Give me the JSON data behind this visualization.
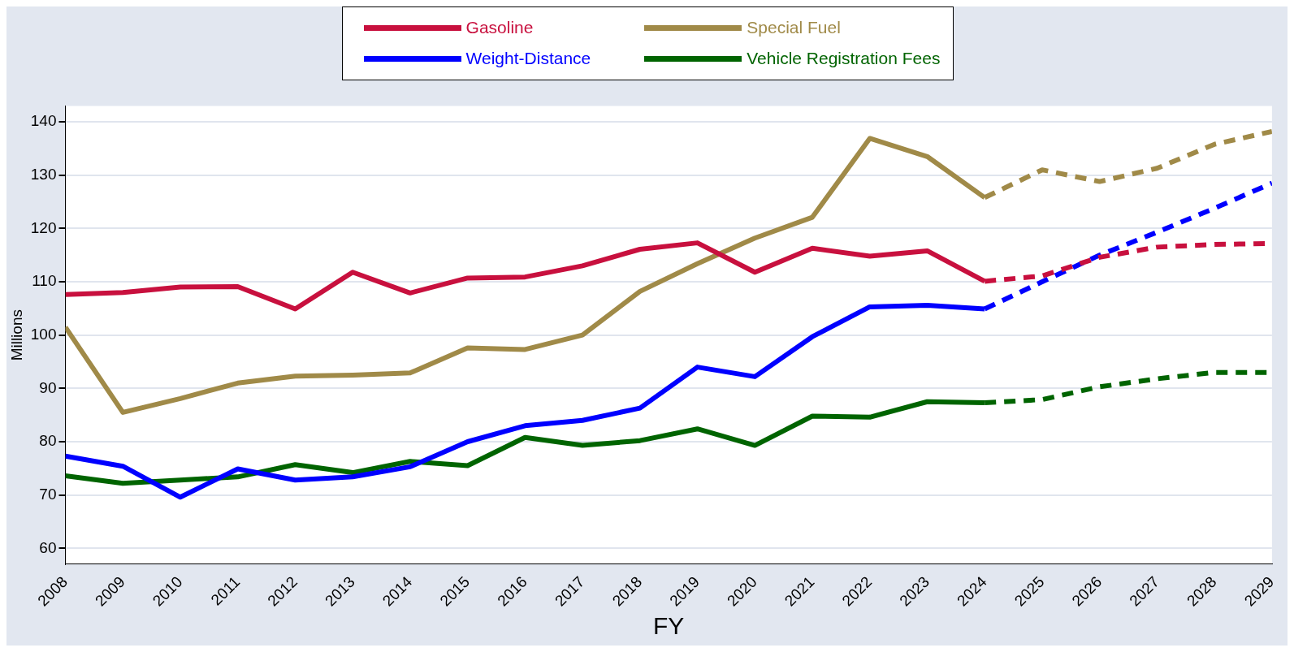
{
  "chart_data": {
    "type": "line",
    "xlabel": "FY",
    "ylabel": "Millions",
    "xlim": [
      2008,
      2029
    ],
    "xticks": [
      2008,
      2009,
      2010,
      2011,
      2012,
      2013,
      2014,
      2015,
      2016,
      2017,
      2018,
      2019,
      2020,
      2021,
      2022,
      2023,
      2024,
      2025,
      2026,
      2027,
      2028,
      2029
    ],
    "ylim": [
      57,
      143
    ],
    "yticks": [
      60,
      70,
      80,
      90,
      100,
      110,
      120,
      130,
      140
    ],
    "grid": "y",
    "legend": "top",
    "marker": "none",
    "series": [
      {
        "name": "Gasoline",
        "color": "#c8103e",
        "line_style": "solid",
        "x": [
          2008,
          2009,
          2010,
          2011,
          2012,
          2013,
          2014,
          2015,
          2016,
          2017,
          2018,
          2019,
          2020,
          2021,
          2022,
          2023,
          2024
        ],
        "values": [
          107.6,
          108.0,
          109.0,
          109.1,
          104.9,
          111.8,
          107.9,
          110.7,
          110.9,
          113.0,
          116.1,
          117.3,
          111.8,
          116.3,
          114.8,
          115.8,
          110.1
        ]
      },
      {
        "name": "Special Fuel",
        "color": "#a08a48",
        "line_style": "solid",
        "x": [
          2008,
          2009,
          2010,
          2011,
          2012,
          2013,
          2014,
          2015,
          2016,
          2017,
          2018,
          2019,
          2020,
          2021,
          2022,
          2023,
          2024
        ],
        "values": [
          101.5,
          85.5,
          88.1,
          91.0,
          92.3,
          92.5,
          92.9,
          97.6,
          97.3,
          100.0,
          108.2,
          113.4,
          118.2,
          122.1,
          136.9,
          133.5,
          125.8
        ]
      },
      {
        "name": "Weight-Distance",
        "color": "#0000ff",
        "line_style": "solid",
        "x": [
          2008,
          2009,
          2010,
          2011,
          2012,
          2013,
          2014,
          2015,
          2016,
          2017,
          2018,
          2019,
          2020,
          2021,
          2022,
          2023,
          2024
        ],
        "values": [
          77.3,
          75.4,
          69.6,
          74.9,
          72.8,
          73.4,
          75.3,
          80.0,
          83.0,
          84.0,
          86.3,
          94.0,
          92.2,
          99.7,
          105.3,
          105.6,
          104.9
        ]
      },
      {
        "name": "Vehicle Registration Fees",
        "color": "#006400",
        "line_style": "solid",
        "x": [
          2008,
          2009,
          2010,
          2011,
          2012,
          2013,
          2014,
          2015,
          2016,
          2017,
          2018,
          2019,
          2020,
          2021,
          2022,
          2023,
          2024
        ],
        "values": [
          73.6,
          72.2,
          72.8,
          73.4,
          75.7,
          74.2,
          76.3,
          75.5,
          80.8,
          79.3,
          80.2,
          82.4,
          79.3,
          84.8,
          84.6,
          87.5,
          87.3
        ]
      },
      {
        "color": "#c8103e",
        "line_style": "dashed",
        "x": [
          2024,
          2025,
          2026,
          2027,
          2028,
          2029
        ],
        "values": [
          110.1,
          111.1,
          114.6,
          116.5,
          117.0,
          117.2
        ]
      },
      {
        "color": "#a08a48",
        "line_style": "dashed",
        "x": [
          2024,
          2025,
          2026,
          2027,
          2028,
          2029
        ],
        "values": [
          125.8,
          131.0,
          128.8,
          131.3,
          135.8,
          138.2
        ]
      },
      {
        "color": "#0000ff",
        "line_style": "dashed",
        "x": [
          2024,
          2025,
          2026,
          2027,
          2028,
          2029
        ],
        "values": [
          104.9,
          110.0,
          115.0,
          119.3,
          123.8,
          128.5
        ]
      },
      {
        "color": "#006400",
        "line_style": "dashed",
        "x": [
          2024,
          2025,
          2026,
          2027,
          2028,
          2029
        ],
        "values": [
          87.3,
          87.9,
          90.3,
          91.8,
          93.0,
          93.0
        ]
      }
    ]
  }
}
